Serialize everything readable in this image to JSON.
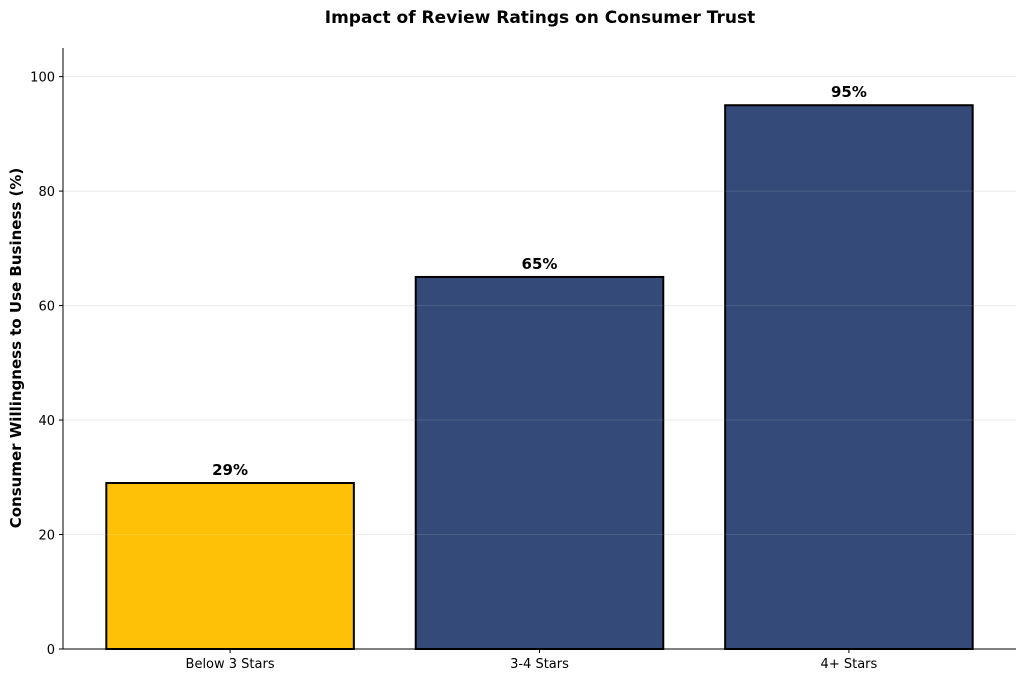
{
  "chart_data": {
    "type": "bar",
    "title": "Impact of Review Ratings on Consumer Trust",
    "xlabel": "",
    "ylabel": "Consumer Willingness to Use Business (%)",
    "categories": [
      "Below 3 Stars",
      "3-4 Stars",
      "4+ Stars"
    ],
    "values": [
      29,
      65,
      95
    ],
    "data_labels": [
      "29%",
      "65%",
      "95%"
    ],
    "colors": [
      "#FFC107",
      "#344A78",
      "#344A78"
    ],
    "edge_color": "#000000",
    "ylim": [
      0,
      105
    ],
    "yticks": [
      0,
      20,
      40,
      60,
      80,
      100
    ],
    "ytick_labels": [
      "0",
      "20",
      "40",
      "60",
      "80",
      "100"
    ],
    "grid": true,
    "legend": "none"
  }
}
